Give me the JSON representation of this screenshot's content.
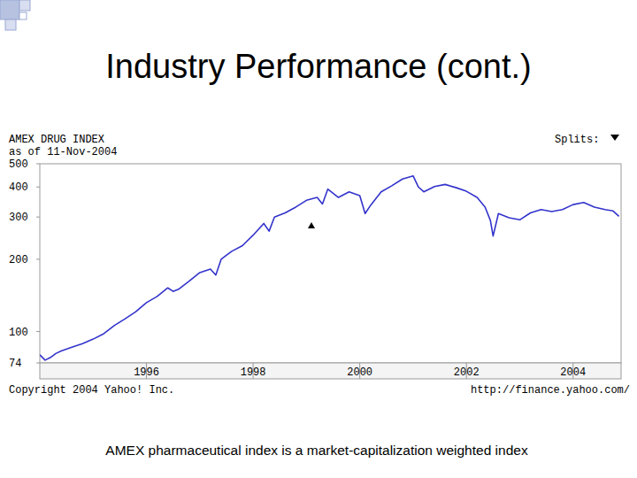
{
  "slide": {
    "title": "Industry Performance (cont.)",
    "caption": "AMEX pharmaceutical index is a market-capitalization weighted index"
  },
  "chart_data": {
    "type": "line",
    "title": "AMEX DRUG INDEX",
    "subtitle": "as of 11-Nov-2004",
    "annotations": [
      "Splits:",
      "Copyright 2004 Yahoo! Inc.",
      "http://finance.yahoo.com/"
    ],
    "x": [
      1994.0,
      1994.1,
      1994.2,
      1994.3,
      1994.4,
      1994.6,
      1994.8,
      1995.0,
      1995.2,
      1995.4,
      1995.6,
      1995.8,
      1996.0,
      1996.2,
      1996.4,
      1996.5,
      1996.6,
      1996.8,
      1997.0,
      1997.2,
      1997.3,
      1997.4,
      1997.6,
      1997.8,
      1998.0,
      1998.2,
      1998.3,
      1998.4,
      1998.6,
      1998.8,
      1999.0,
      1999.2,
      1999.3,
      1999.4,
      1999.6,
      1999.8,
      2000.0,
      2000.1,
      2000.2,
      2000.4,
      2000.6,
      2000.8,
      2001.0,
      2001.1,
      2001.2,
      2001.4,
      2001.6,
      2001.8,
      2002.0,
      2002.2,
      2002.35,
      2002.45,
      2002.5,
      2002.6,
      2002.8,
      2003.0,
      2003.2,
      2003.4,
      2003.6,
      2003.8,
      2004.0,
      2004.2,
      2004.4,
      2004.6,
      2004.75,
      2004.86
    ],
    "values": [
      80,
      76,
      78,
      81,
      83,
      86,
      89,
      93,
      98,
      106,
      113,
      121,
      132,
      140,
      152,
      147,
      150,
      162,
      176,
      182,
      172,
      200,
      216,
      228,
      252,
      282,
      262,
      300,
      312,
      330,
      352,
      362,
      340,
      392,
      362,
      382,
      368,
      310,
      335,
      382,
      405,
      432,
      445,
      400,
      382,
      402,
      410,
      398,
      384,
      362,
      330,
      290,
      250,
      310,
      298,
      292,
      312,
      322,
      316,
      322,
      338,
      345,
      330,
      322,
      318,
      302
    ],
    "color": "#3333cc",
    "line_style": "solid",
    "xlim": [
      1994.0,
      2004.9
    ],
    "xticks": [
      1996,
      1998,
      2000,
      2002,
      2004
    ],
    "ylim": [
      74,
      500
    ],
    "yticks": [
      74,
      100,
      200,
      300,
      400,
      500
    ],
    "log": "y",
    "grid": false
  }
}
